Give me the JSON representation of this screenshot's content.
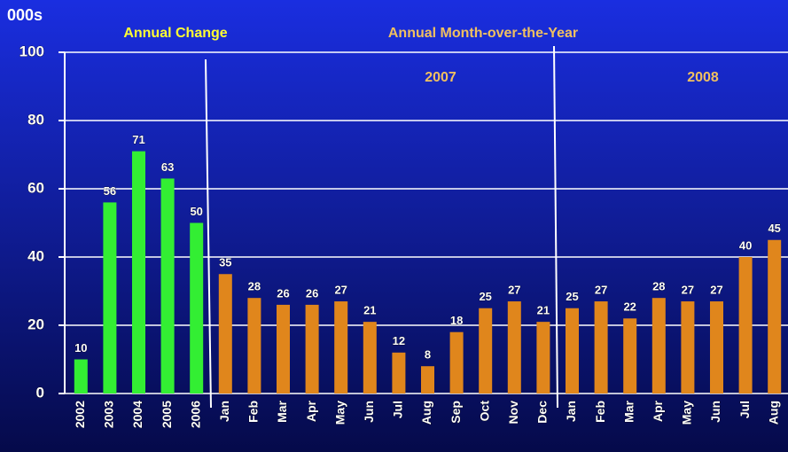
{
  "chart_data": {
    "type": "bar",
    "unit_label": "000s",
    "annotations": [
      "Annual Change",
      "Annual Month-over-the-Year",
      "2007",
      "2008"
    ],
    "categories": [
      "2002",
      "2003",
      "2004",
      "2005",
      "2006",
      "Jan",
      "Feb",
      "Mar",
      "Apr",
      "May",
      "Jun",
      "Jul",
      "Aug",
      "Sep",
      "Oct",
      "Nov",
      "Dec",
      "Jan",
      "Feb",
      "Mar",
      "Apr",
      "May",
      "Jun",
      "Jul",
      "Aug"
    ],
    "values": [
      10,
      56,
      71,
      63,
      50,
      35,
      28,
      26,
      26,
      27,
      21,
      12,
      8,
      18,
      25,
      27,
      21,
      25,
      27,
      22,
      28,
      27,
      27,
      40,
      45
    ],
    "colors": [
      "#33ee33",
      "#33ee33",
      "#33ee33",
      "#33ee33",
      "#33ee33",
      "#e0861c",
      "#e0861c",
      "#e0861c",
      "#e0861c",
      "#e0861c",
      "#e0861c",
      "#e0861c",
      "#e0861c",
      "#e0861c",
      "#e0861c",
      "#e0861c",
      "#e0861c",
      "#e0861c",
      "#e0861c",
      "#e0861c",
      "#e0861c",
      "#e0861c",
      "#e0861c",
      "#e0861c",
      "#e0861c"
    ],
    "ylim": [
      0,
      100
    ],
    "yticks": [
      0,
      20,
      40,
      60,
      80,
      100
    ],
    "grid": true
  }
}
